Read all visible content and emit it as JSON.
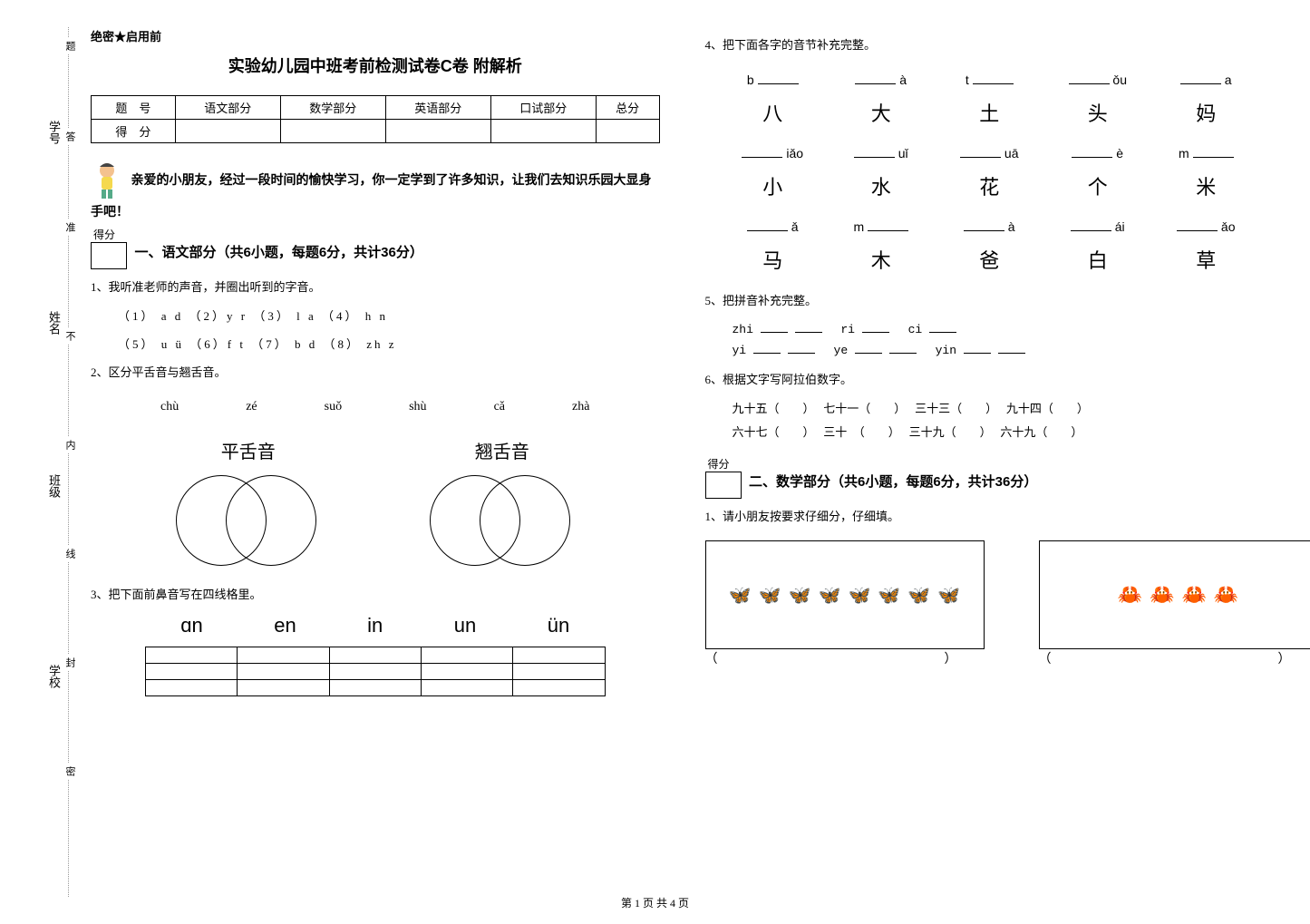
{
  "confidential": "绝密★启用前",
  "title": "实验幼儿园中班考前检测试卷C卷 附解析",
  "scoreTable": {
    "headers": [
      "题　号",
      "语文部分",
      "数学部分",
      "英语部分",
      "口试部分",
      "总分"
    ],
    "row2": "得　分"
  },
  "intro": "亲爱的小朋友，经过一段时间的愉快学习，你一定学到了许多知识，让我们去知识乐园大显身手吧！",
  "scoreBoxLabel": "得分",
  "section1": {
    "title": "一、语文部分（共6小题，每题6分，共计36分）",
    "q1": "1、我听准老师的声音，并圈出听到的字音。",
    "q1_opts_a": "（1） a   d    （2）y    r     （3） l    a   （4） h    n",
    "q1_opts_b": "（5） u   ü   （6）f    t     （7） b    d   （8） zh   z",
    "q2": "2、区分平舌音与翘舌音。",
    "q2_pinyins": [
      "chù",
      "zé",
      "suǒ",
      "shù",
      "cǎ",
      "zhà"
    ],
    "q2_label_left": "平舌音",
    "q2_label_right": "翘舌音",
    "q3": "3、把下面前鼻音写在四线格里。",
    "q3_nasals": [
      "ɑn",
      "en",
      "in",
      "un",
      "ün"
    ],
    "q4": "4、把下面各字的音节补充完整。",
    "q4_grid": [
      {
        "py": "b ",
        "blank": "after",
        "ch": "八"
      },
      {
        "py": " à",
        "blank": "before",
        "ch": "大"
      },
      {
        "py": "t ",
        "blank": "after",
        "ch": "土"
      },
      {
        "py": " ǒu",
        "blank": "before",
        "ch": "头"
      },
      {
        "py": " a",
        "blank": "before",
        "ch": "妈"
      },
      {
        "py": " iǎo",
        "blank": "before",
        "ch": "小"
      },
      {
        "py": " uǐ",
        "blank": "before",
        "ch": "水"
      },
      {
        "py": " uā",
        "blank": "before",
        "ch": "花"
      },
      {
        "py": " è",
        "blank": "before",
        "ch": "个"
      },
      {
        "py": "m",
        "blank": "after",
        "ch": "米"
      },
      {
        "py": " ǎ",
        "blank": "before",
        "ch": "马"
      },
      {
        "py": "m",
        "blank": "after",
        "ch": "木"
      },
      {
        "py": " à",
        "blank": "before",
        "ch": "爸"
      },
      {
        "py": " ái",
        "blank": "before",
        "ch": "白"
      },
      {
        "py": " ǎo",
        "blank": "before",
        "ch": "草"
      }
    ],
    "q5": "5、把拼音补充完整。",
    "q5_lines": [
      [
        "zhi",
        "ri",
        "ci"
      ],
      [
        "yi",
        "ye",
        "yin"
      ]
    ],
    "q6": "6、根据文字写阿拉伯数字。",
    "q6_items": [
      [
        "九十五（　　）",
        "七十一（　　）",
        "三十三（　　）",
        "九十四（　　）"
      ],
      [
        "六十七（　　）",
        "三十　（　　）",
        "三十九（　　）",
        "六十九（　　）"
      ]
    ]
  },
  "section2": {
    "title": "二、数学部分（共6小题，每题6分，共计36分）",
    "q1": "1、请小朋友按要求仔细分，仔细填。"
  },
  "vertical": {
    "school": "学校",
    "class": "班级",
    "name": "姓名",
    "sid": "学号"
  },
  "dotted": [
    "密",
    "封",
    "线",
    "内",
    "不",
    "准",
    "答",
    "题"
  ],
  "footer": "第 1 页 共 4 页",
  "parens": "（　　　　　）"
}
